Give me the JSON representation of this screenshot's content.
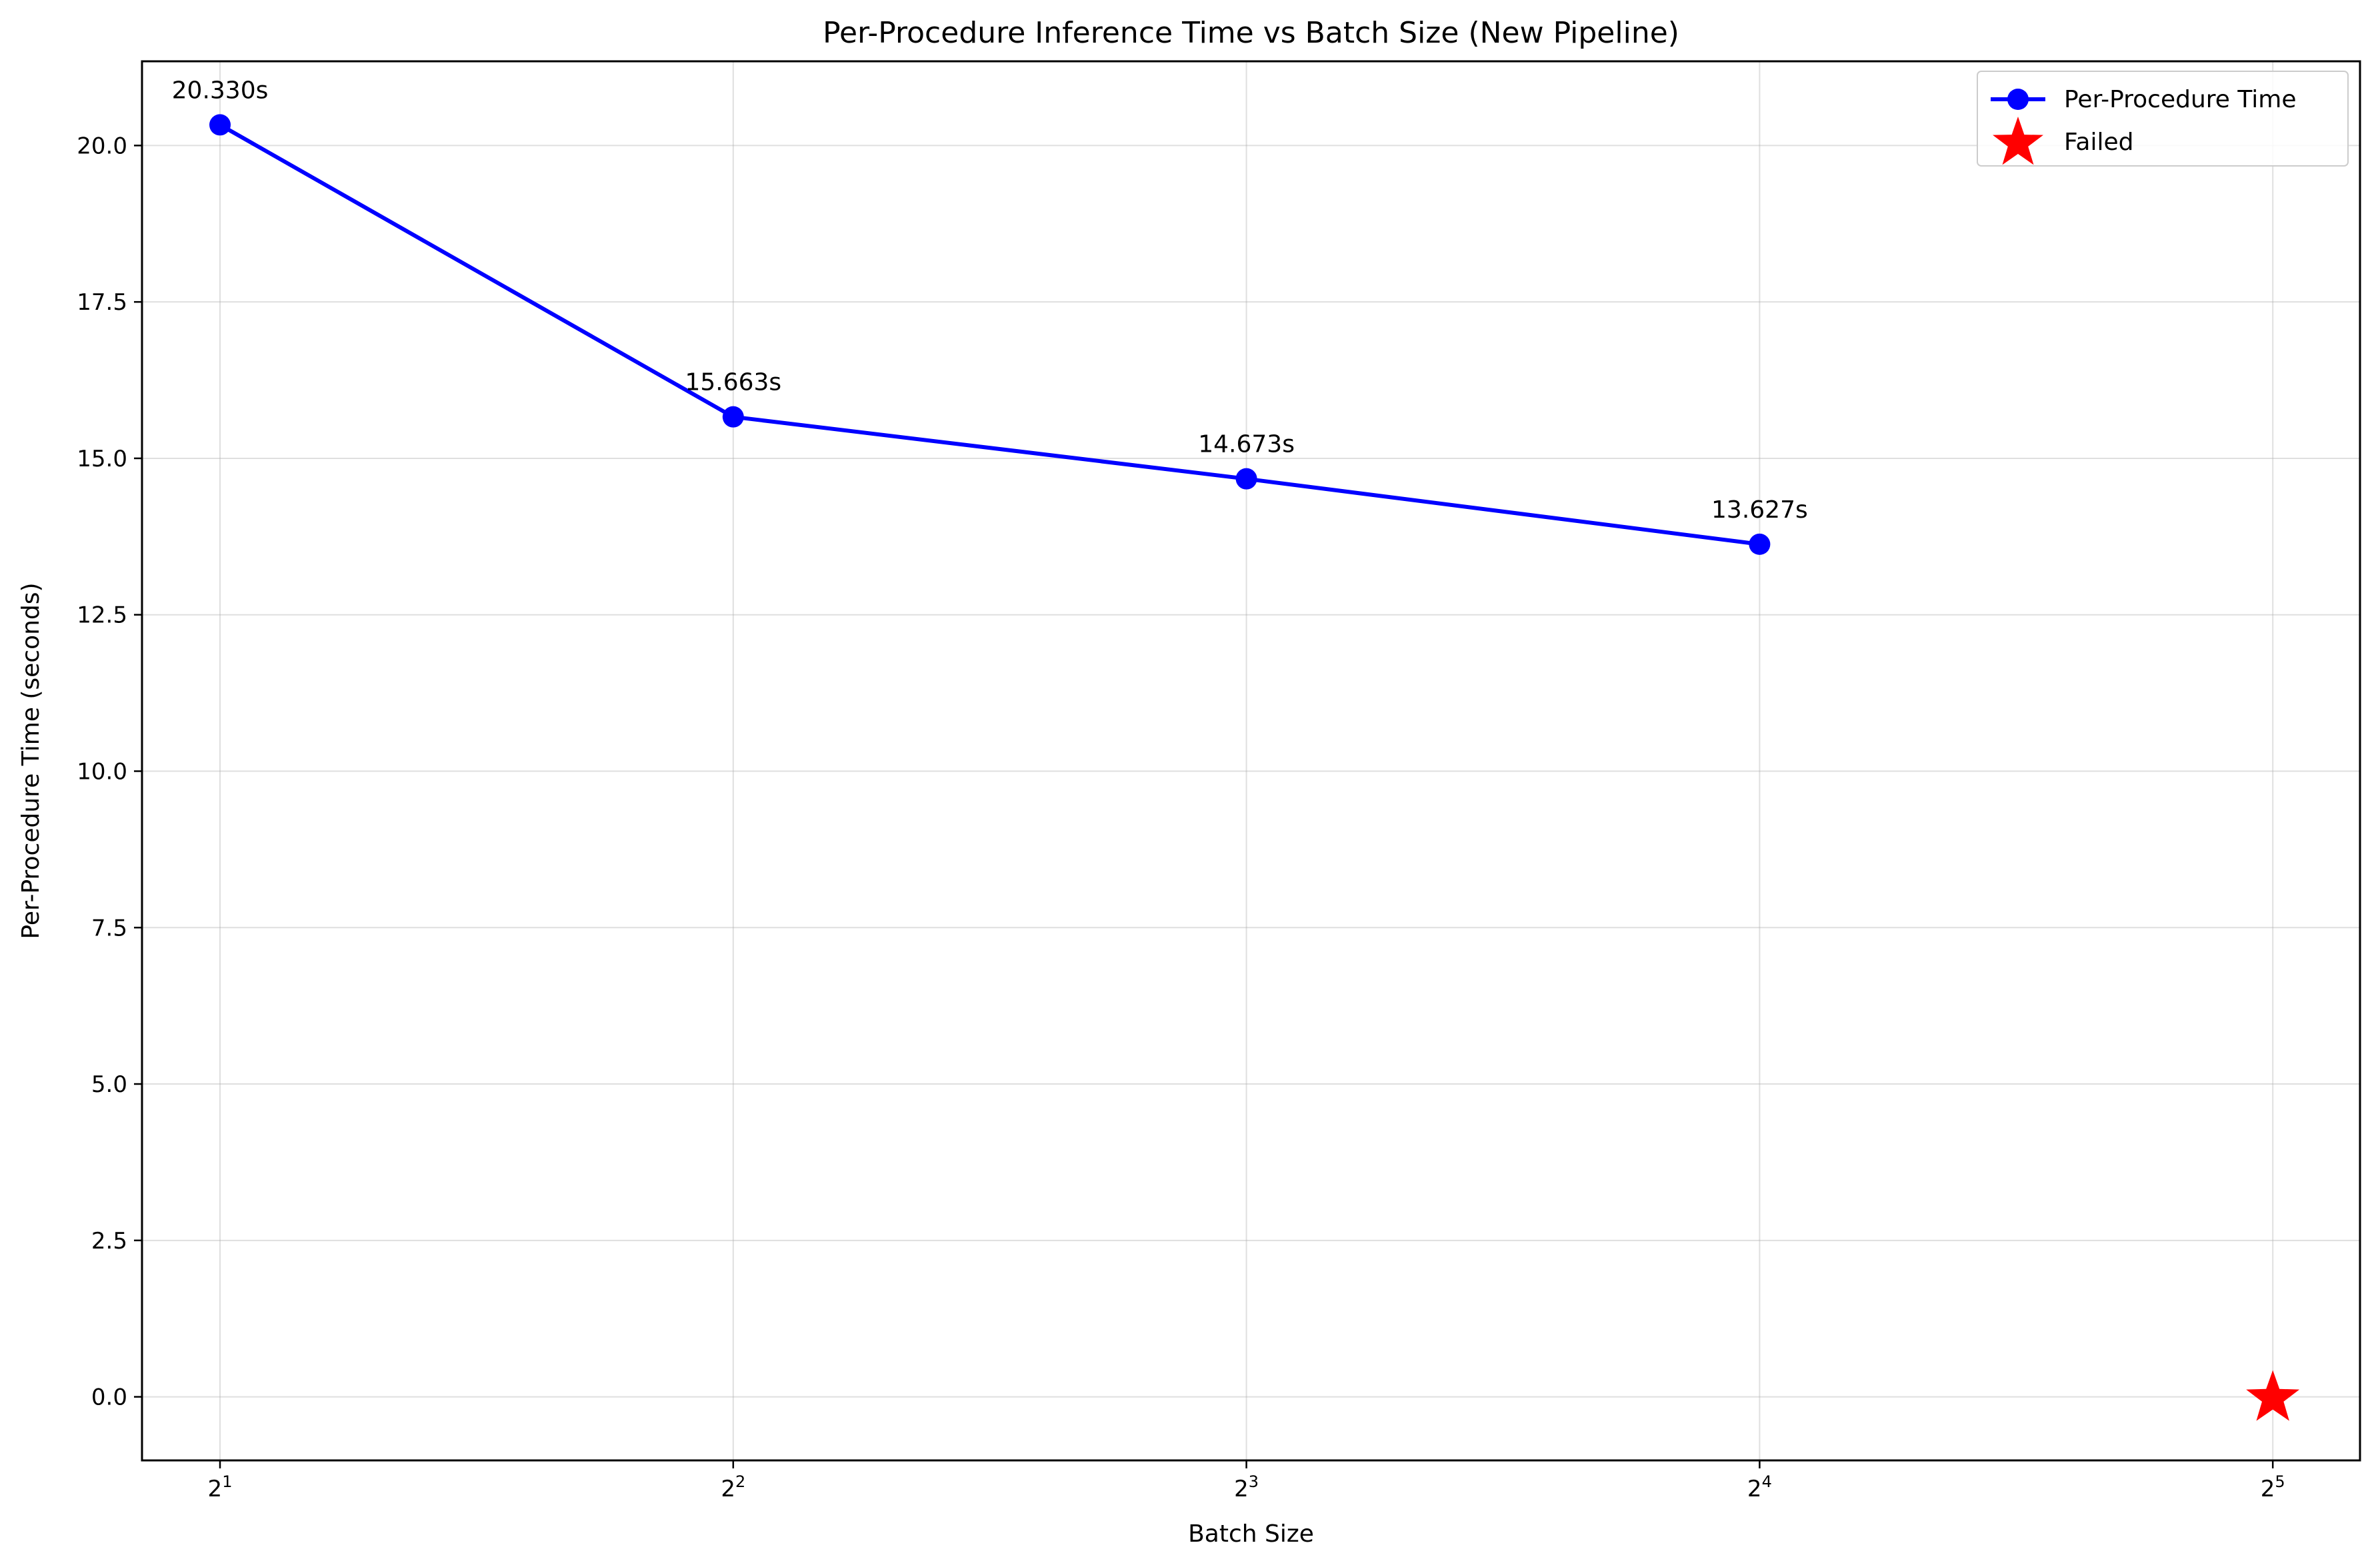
{
  "chart_data": {
    "type": "line",
    "title": "Per-Procedure Inference Time vs Batch Size (New Pipeline)",
    "xlabel": "Batch Size",
    "ylabel": "Per-Procedure Time (seconds)",
    "x_scale": "log2",
    "xlim": [
      1.8,
      36
    ],
    "ylim": [
      -1.016,
      21.346
    ],
    "xticks": [
      {
        "value": 2,
        "base": "2",
        "exp": "1"
      },
      {
        "value": 4,
        "base": "2",
        "exp": "2"
      },
      {
        "value": 8,
        "base": "2",
        "exp": "3"
      },
      {
        "value": 16,
        "base": "2",
        "exp": "4"
      },
      {
        "value": 32,
        "base": "2",
        "exp": "5"
      }
    ],
    "yticks": [
      0.0,
      2.5,
      5.0,
      7.5,
      10.0,
      12.5,
      15.0,
      17.5,
      20.0
    ],
    "ytick_labels": [
      "0.0",
      "2.5",
      "5.0",
      "7.5",
      "10.0",
      "12.5",
      "15.0",
      "17.5",
      "20.0"
    ],
    "grid": true,
    "legend_position": "top-right",
    "series": [
      {
        "name": "Per-Procedure Time",
        "x": [
          2,
          4,
          8,
          16
        ],
        "y": [
          20.33,
          15.663,
          14.673,
          13.627
        ],
        "color": "#0000ff",
        "marker": "circle",
        "data_labels": [
          "20.330s",
          "15.663s",
          "14.673s",
          "13.627s"
        ]
      },
      {
        "name": "Failed",
        "x": [
          32
        ],
        "y": [
          0
        ],
        "color": "#ff0000",
        "marker": "star"
      }
    ]
  }
}
